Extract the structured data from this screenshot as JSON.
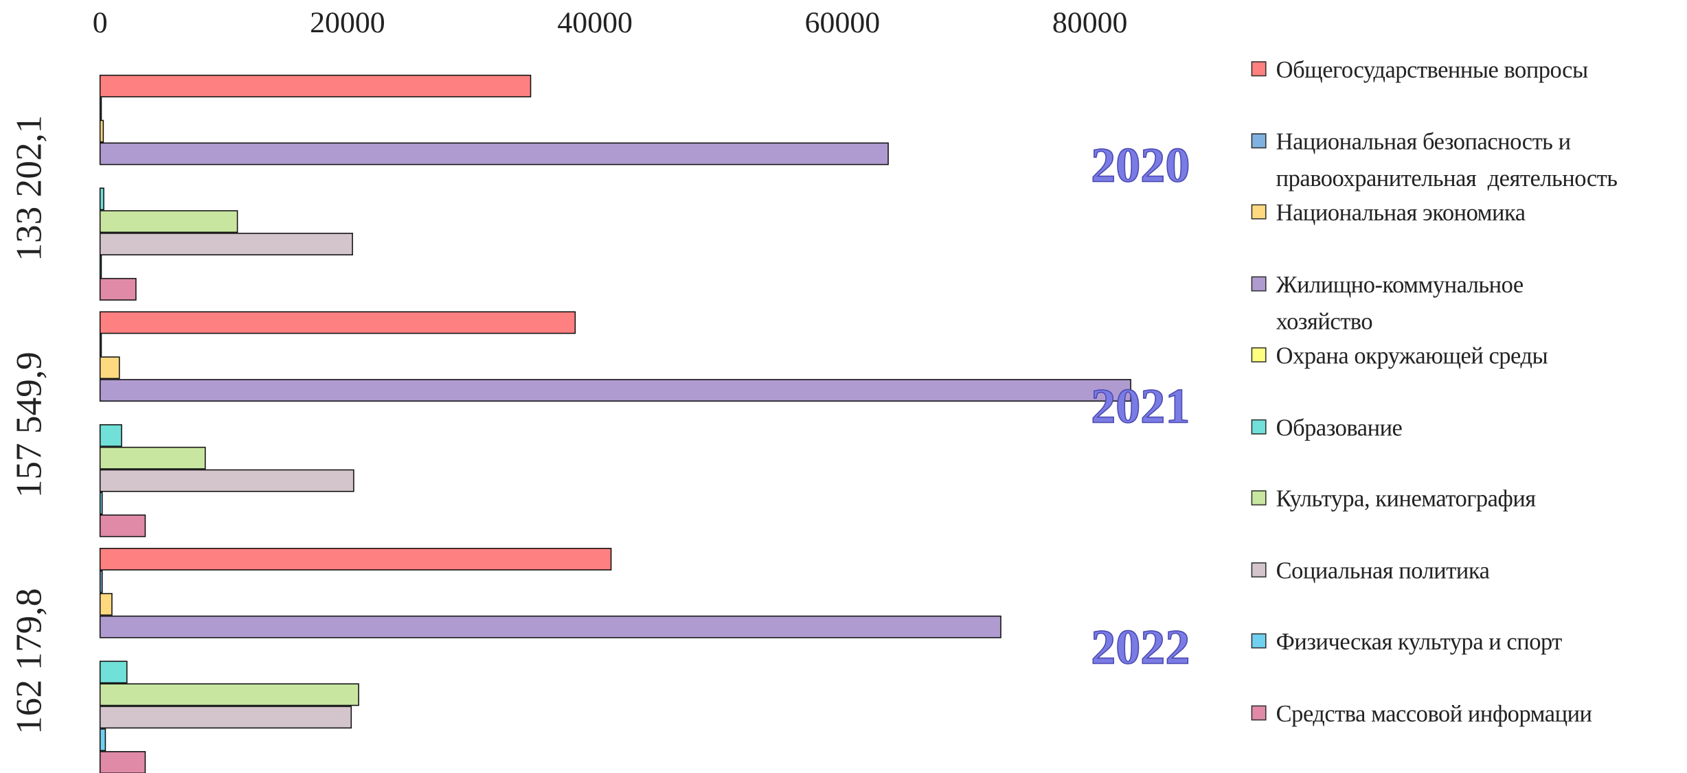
{
  "chart_data": {
    "type": "bar",
    "orientation": "horizontal",
    "categories": [
      "133 202,1",
      "157 549,9",
      "162 179,8"
    ],
    "annotations": [
      "2020",
      "2021",
      "2022"
    ],
    "xlim": [
      0,
      90000
    ],
    "xticks": [
      0,
      20000,
      40000,
      60000,
      80000
    ],
    "series": [
      {
        "name": "Общегосударственные вопросы",
        "color": "#ff8080",
        "values": [
          34800,
          38400,
          41300
        ]
      },
      {
        "name": "Национальная безопасность и правоохранительная  деятельность",
        "color": "#7fb2e0",
        "values": [
          100,
          100,
          170
        ]
      },
      {
        "name": "Национальная экономика",
        "color": "#ffd980",
        "values": [
          260,
          1560,
          960
        ]
      },
      {
        "name": "Жилищно-коммунальное хозяйство",
        "color": "#b09bd0",
        "values": [
          63700,
          83300,
          72800
        ]
      },
      {
        "name": "Охрана окружающей среды",
        "color": "#ffff80",
        "values": [
          0,
          0,
          0
        ]
      },
      {
        "name": "Образование",
        "color": "#70e0d8",
        "values": [
          300,
          1740,
          2170
        ]
      },
      {
        "name": "Культура, кинематография",
        "color": "#c8e6a0",
        "values": [
          11100,
          8500,
          20900
        ]
      },
      {
        "name": "Социальная политика",
        "color": "#d4c4cc",
        "values": [
          20400,
          20500,
          20300
        ]
      },
      {
        "name": "Физическая культура и спорт",
        "color": "#70d0f0",
        "values": [
          100,
          170,
          430
        ]
      },
      {
        "name": "Средства массовой информации",
        "color": "#e08aa8",
        "values": [
          2900,
          3650,
          3650
        ]
      }
    ]
  }
}
